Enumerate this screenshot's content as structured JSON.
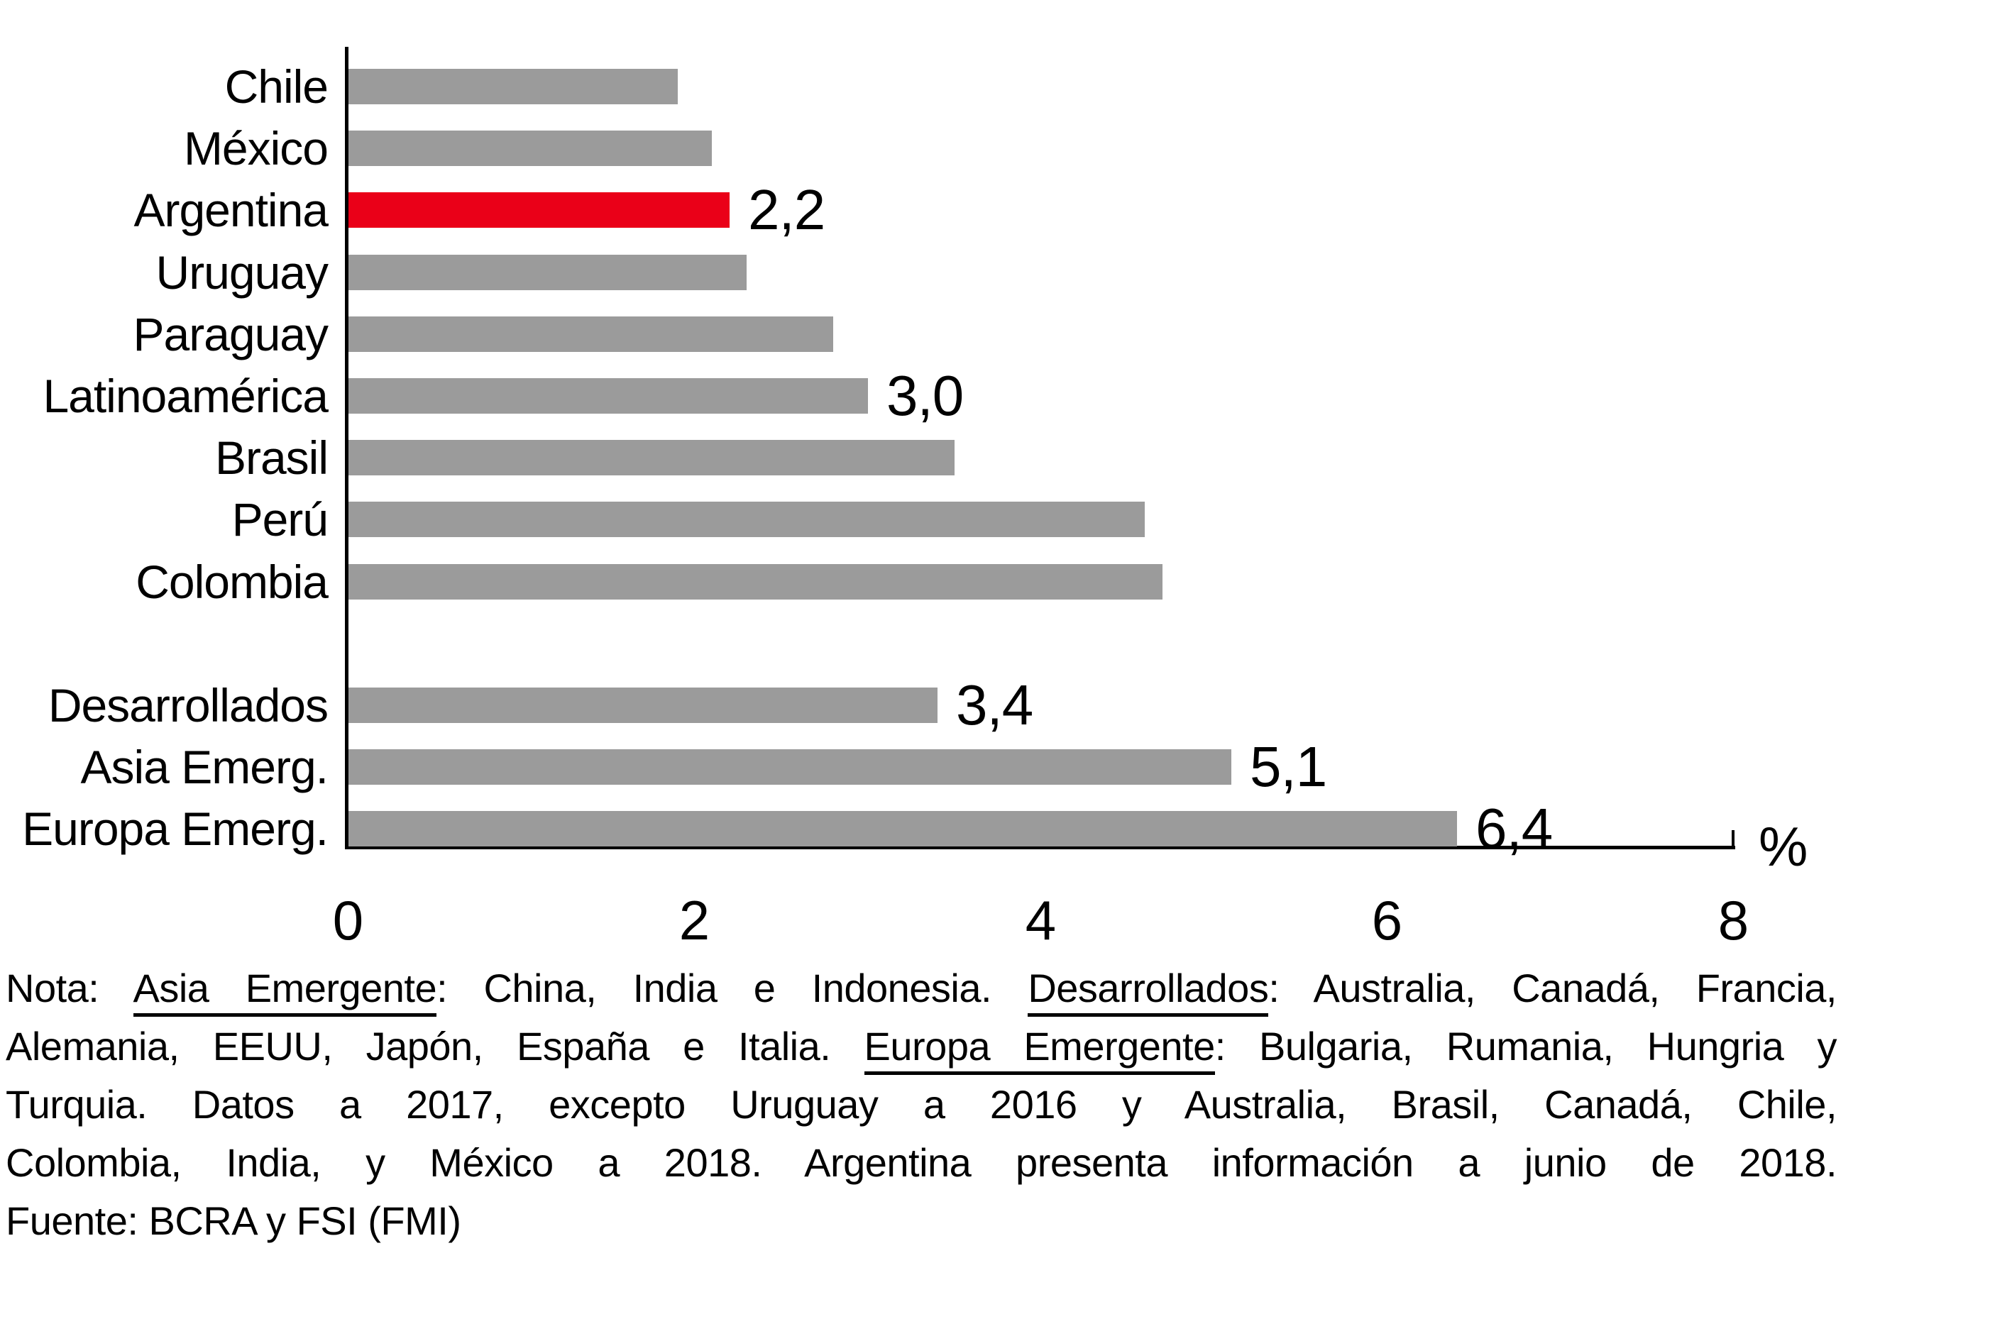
{
  "chart_data": {
    "type": "bar",
    "orientation": "horizontal",
    "title": "",
    "categories": [
      "Chile",
      "México",
      "Argentina",
      "Uruguay",
      "Paraguay",
      "Latinoamérica",
      "Brasil",
      "Perú",
      "Colombia",
      "Desarrollados",
      "Asia Emerg.",
      "Europa Emerg."
    ],
    "values": [
      1.9,
      2.1,
      2.2,
      2.3,
      2.8,
      3.0,
      3.5,
      4.6,
      4.7,
      3.4,
      5.1,
      6.4
    ],
    "value_labels": [
      "",
      "",
      "2,2",
      "",
      "",
      "3,0",
      "",
      "",
      "",
      "3,4",
      "5,1",
      "6,4"
    ],
    "group_break_after": "Colombia",
    "xlabel": "",
    "ylabel": "",
    "xlim": [
      0,
      8
    ],
    "x_ticks": [
      "0",
      "2",
      "4",
      "6",
      "8"
    ],
    "x_unit": "%",
    "grid": "off",
    "legend": "none",
    "bar_color": "#9B9B9B",
    "highlight_category": "Argentina",
    "highlight_color": "#EA0018",
    "axis_color": "#000000"
  },
  "note": {
    "lines": [
      {
        "justify": true,
        "segments": [
          {
            "t": "Nota: "
          },
          {
            "t": "Asia Emergente",
            "u": true
          },
          {
            "t": ": China, India e Indonesia. "
          },
          {
            "t": "Desarrollados",
            "u": true
          },
          {
            "t": ": Australia, Canadá, Francia,"
          }
        ]
      },
      {
        "justify": true,
        "segments": [
          {
            "t": "Alemania, EEUU, Japón, España e Italia. "
          },
          {
            "t": "Europa Emergente",
            "u": true
          },
          {
            "t": ": Bulgaria, Rumania, Hungria y"
          }
        ]
      },
      {
        "justify": true,
        "segments": [
          {
            "t": "Turquia. Datos a 2017, excepto Uruguay a 2016 y Australia, Brasil, Canadá, Chile,"
          }
        ]
      },
      {
        "justify": true,
        "segments": [
          {
            "t": "Colombia, India, y México a 2018. Argentina presenta información a junio de 2018."
          }
        ]
      },
      {
        "justify": false,
        "segments": [
          {
            "t": "Fuente: BCRA y FSI (FMI)"
          }
        ]
      }
    ]
  }
}
